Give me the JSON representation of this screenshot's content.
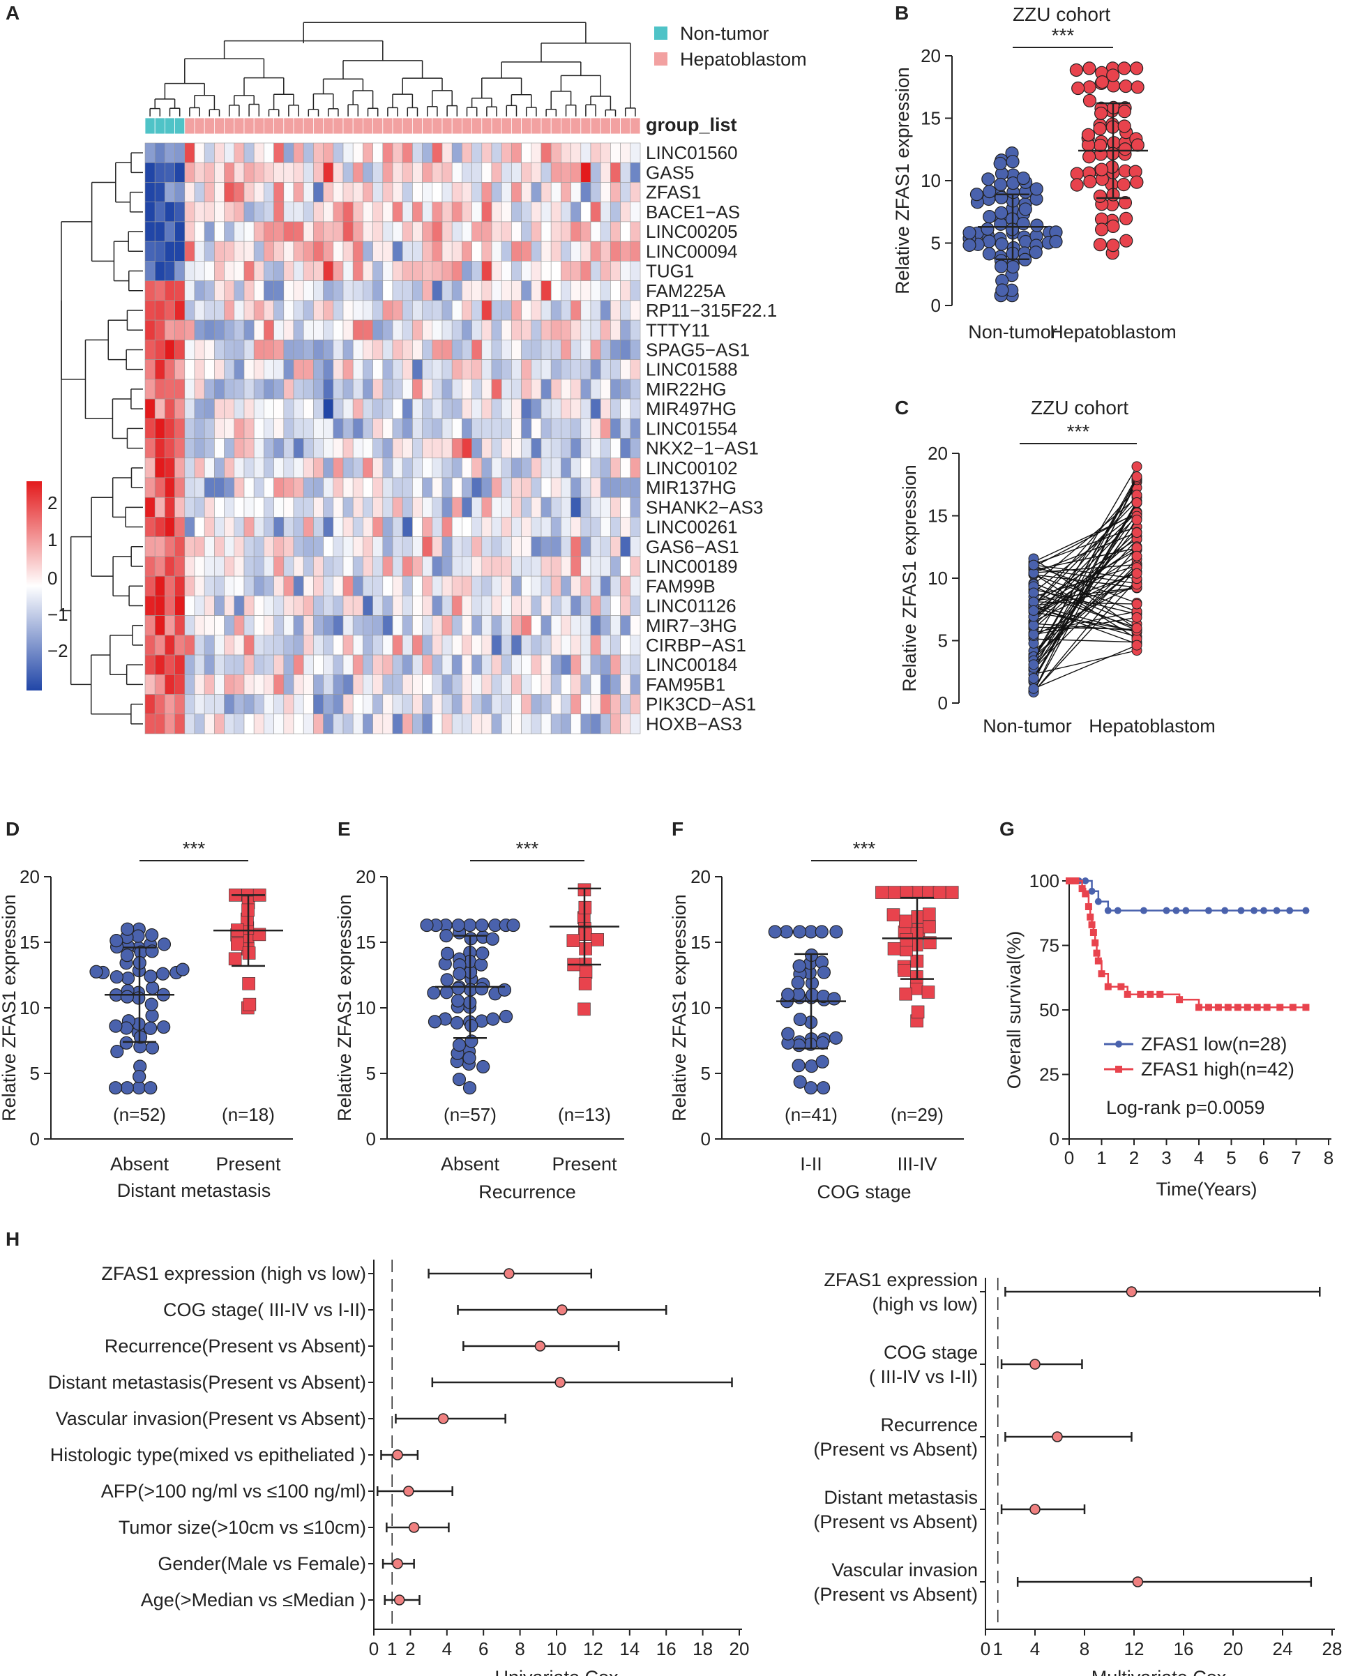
{
  "palette": {
    "blue": "#4a62ad",
    "red": "#e8434d",
    "teal": "#4fc3c7",
    "pink": "#f2a1a1",
    "dot": "#f08080",
    "refline": "#d0312d"
  },
  "chart_data": [
    {
      "panel": "A",
      "type": "heatmap",
      "legend": [
        {
          "label": "Non-tumor",
          "color": "#4fc3c7"
        },
        {
          "label": "Hepatoblastom",
          "color": "#f2a1a1"
        }
      ],
      "annotation_label": "group_list",
      "scale_ticks": [
        "2",
        "1",
        "0",
        "−1",
        "−2"
      ],
      "n_nontumor": 4,
      "n_tumor": 46,
      "genes": [
        "LINC01560",
        "GAS5",
        "ZFAS1",
        "BACE1−AS",
        "LINC00205",
        "LINC00094",
        "TUG1",
        "FAM225A",
        "RP11−315F22.1",
        "TTTY11",
        "SPAG5−AS1",
        "LINC01588",
        "MIR22HG",
        "MIR497HG",
        "LINC01554",
        "NKX2−1−AS1",
        "LINC00102",
        "MIR137HG",
        "SHANK2−AS3",
        "LINC00261",
        "GAS6−AS1",
        "LINC00189",
        "FAM99B",
        "LINC01126",
        "MIR7−3HG",
        "CIRBP−AS1",
        "LINC00184",
        "FAM95B1",
        "PIK3CD−AS1",
        "HOXB−AS3"
      ],
      "up_in_tumor_rows": 7
    },
    {
      "panel": "B",
      "type": "scatter",
      "title": "ZZU cohort",
      "significance": "***",
      "ylabel": "Relative ZFAS1 expression",
      "ylim": [
        0,
        20
      ],
      "yticks": [
        "0",
        "5",
        "10",
        "15",
        "20"
      ],
      "categories": [
        "Non-tumor",
        "Hepatoblastom"
      ],
      "groups": [
        {
          "name": "Non-tumor",
          "n": 70,
          "mean": 6.3,
          "sd": 2.6,
          "min": 0.8,
          "max": 12.2
        },
        {
          "name": "Hepatoblastom",
          "n": 70,
          "mean": 12.4,
          "sd": 3.8,
          "min": 4.2,
          "max": 19.0
        }
      ]
    },
    {
      "panel": "C",
      "type": "line",
      "title": "ZZU cohort",
      "significance": "***",
      "ylabel": "Relative ZFAS1 expression",
      "ylim": [
        0,
        20
      ],
      "yticks": [
        "0",
        "5",
        "10",
        "15",
        "20"
      ],
      "categories": [
        "Non-tumor",
        "Hepatoblastom"
      ],
      "n_pairs": 70,
      "ranges": {
        "nontumor": [
          0.8,
          12.2
        ],
        "tumor": [
          4.2,
          19.0
        ]
      }
    },
    {
      "panel": "D",
      "type": "scatter",
      "significance": "***",
      "ylabel": "Relative ZFAS1 expression",
      "xlabel": "Distant metastasis",
      "ylim": [
        0,
        20
      ],
      "yticks": [
        "0",
        "5",
        "10",
        "15",
        "20"
      ],
      "categories": [
        "Absent",
        "Present"
      ],
      "n_labels": [
        "(n=52)",
        "(n=18)"
      ],
      "groups": [
        {
          "name": "Absent",
          "n": 52,
          "mean": 11.0,
          "sd": 3.6,
          "min": 3.9,
          "max": 16.0,
          "color": "#4a62ad"
        },
        {
          "name": "Present",
          "n": 18,
          "mean": 15.9,
          "sd": 2.7,
          "min": 10.0,
          "max": 18.6,
          "color": "#e8434d"
        }
      ]
    },
    {
      "panel": "E",
      "type": "scatter",
      "significance": "***",
      "ylabel": "Relative ZFAS1 expression",
      "xlabel": "Recurrence",
      "ylim": [
        0,
        20
      ],
      "yticks": [
        "0",
        "5",
        "10",
        "15",
        "20"
      ],
      "categories": [
        "Absent",
        "Present"
      ],
      "n_labels": [
        "(n=57)",
        "(n=13)"
      ],
      "groups": [
        {
          "name": "Absent",
          "n": 57,
          "mean": 11.6,
          "sd": 3.9,
          "min": 3.9,
          "max": 16.3,
          "color": "#4a62ad"
        },
        {
          "name": "Present",
          "n": 13,
          "mean": 16.2,
          "sd": 2.9,
          "min": 9.9,
          "max": 19.0,
          "color": "#e8434d"
        }
      ]
    },
    {
      "panel": "F",
      "type": "scatter",
      "significance": "***",
      "ylabel": "Relative ZFAS1 expression",
      "xlabel": "COG stage",
      "ylim": [
        0,
        20
      ],
      "yticks": [
        "0",
        "5",
        "10",
        "15",
        "20"
      ],
      "categories": [
        "I-II",
        "III-IV"
      ],
      "n_labels": [
        "(n=41)",
        "(n=29)"
      ],
      "groups": [
        {
          "name": "I-II",
          "n": 41,
          "mean": 10.5,
          "sd": 3.6,
          "min": 3.9,
          "max": 15.8,
          "color": "#4a62ad"
        },
        {
          "name": "III-IV",
          "n": 29,
          "mean": 15.3,
          "sd": 3.1,
          "min": 9.0,
          "max": 18.8,
          "color": "#e8434d"
        }
      ]
    },
    {
      "panel": "G",
      "type": "line",
      "ylabel": "Overall survival(%)",
      "xlabel": "Time(Years)",
      "xlim": [
        0,
        8
      ],
      "ylim": [
        0,
        100
      ],
      "xticks": [
        "0",
        "1",
        "2",
        "3",
        "4",
        "5",
        "6",
        "7",
        "8"
      ],
      "yticks": [
        "0",
        "25",
        "50",
        "75",
        "100"
      ],
      "annotation": "Log-rank p=0.0059",
      "series": [
        {
          "name": "ZFAS1 low(n=28)",
          "color": "#4a62ad",
          "x": [
            0,
            0.3,
            0.5,
            0.7,
            0.9,
            1.2,
            1.5,
            2.3,
            3.0,
            3.3,
            3.6,
            4.3,
            4.8,
            5.3,
            5.7,
            6.0,
            6.4,
            6.8,
            7.3
          ],
          "y": [
            100,
            100,
            100,
            96,
            92,
            88.5,
            88.5,
            88.5,
            88.5,
            88.5,
            88.5,
            88.5,
            88.5,
            88.5,
            88.5,
            88.5,
            88.5,
            88.5,
            88.5
          ]
        },
        {
          "name": "ZFAS1 high(n=42)",
          "color": "#e8434d",
          "x": [
            0,
            0.2,
            0.4,
            0.5,
            0.6,
            0.65,
            0.7,
            0.75,
            0.8,
            0.85,
            0.9,
            1.0,
            1.2,
            1.6,
            1.8,
            2.2,
            2.5,
            2.8,
            3.4,
            4.0,
            4.3,
            4.6,
            4.9,
            5.2,
            5.5,
            5.8,
            6.1,
            6.5,
            6.9,
            7.3
          ],
          "y": [
            100,
            100,
            97,
            95,
            90,
            86,
            83,
            80,
            76,
            72,
            69,
            64,
            59,
            59,
            56,
            56,
            56,
            56,
            54,
            51,
            51,
            51,
            51,
            51,
            51,
            51,
            51,
            51,
            51,
            51
          ]
        }
      ]
    },
    {
      "panel": "H-left",
      "type": "scatter",
      "title": "Univariate Cox",
      "xlim": [
        0,
        20
      ],
      "xticks": [
        "0",
        "1",
        "2",
        "4",
        "6",
        "8",
        "10",
        "12",
        "14",
        "16",
        "18",
        "20"
      ],
      "reference": 1,
      "rows": [
        {
          "label": "ZFAS1 expression (high vs low)",
          "hr": 7.4,
          "lo": 3.0,
          "hi": 11.9
        },
        {
          "label": "COG stage( III-IV vs I-II)",
          "hr": 10.3,
          "lo": 4.6,
          "hi": 16.0
        },
        {
          "label": "Recurrence(Present vs Absent)",
          "hr": 9.1,
          "lo": 4.9,
          "hi": 13.4
        },
        {
          "label": "Distant metastasis(Present vs Absent)",
          "hr": 10.2,
          "lo": 3.2,
          "hi": 19.6
        },
        {
          "label": "Vascular invasion(Present vs Absent)",
          "hr": 3.8,
          "lo": 1.2,
          "hi": 7.2
        },
        {
          "label": "Histologic type(mixed vs epitheliated )",
          "hr": 1.3,
          "lo": 0.4,
          "hi": 2.4
        },
        {
          "label": "AFP(>100 ng/ml vs ≤100 ng/ml)",
          "hr": 1.9,
          "lo": 0.2,
          "hi": 4.3
        },
        {
          "label": "Tumor size(>10cm vs ≤10cm)",
          "hr": 2.2,
          "lo": 0.7,
          "hi": 4.1
        },
        {
          "label": "Gender(Male vs Female)",
          "hr": 1.3,
          "lo": 0.5,
          "hi": 2.2
        },
        {
          "label": "Age(>Median vs ≤Median )",
          "hr": 1.4,
          "lo": 0.6,
          "hi": 2.5
        }
      ]
    },
    {
      "panel": "H-right",
      "type": "scatter",
      "title": "Multivariate Cox",
      "xlim": [
        0,
        28
      ],
      "xticks": [
        "0",
        "1",
        "4",
        "8",
        "12",
        "16",
        "20",
        "24",
        "28"
      ],
      "reference": 1,
      "rows": [
        {
          "label": [
            "ZFAS1 expression",
            "(high vs low)"
          ],
          "hr": 11.8,
          "lo": 1.6,
          "hi": 27.0
        },
        {
          "label": [
            "COG stage",
            "( III-IV vs I-II)"
          ],
          "hr": 4.0,
          "lo": 1.3,
          "hi": 7.8
        },
        {
          "label": [
            "Recurrence",
            "(Present vs Absent)"
          ],
          "hr": 5.8,
          "lo": 1.6,
          "hi": 11.8
        },
        {
          "label": [
            "Distant metastasis",
            "(Present vs Absent)"
          ],
          "hr": 4.0,
          "lo": 1.3,
          "hi": 8.0
        },
        {
          "label": [
            "Vascular invasion",
            "(Present vs Absent)"
          ],
          "hr": 12.3,
          "lo": 2.6,
          "hi": 26.3
        }
      ]
    }
  ]
}
